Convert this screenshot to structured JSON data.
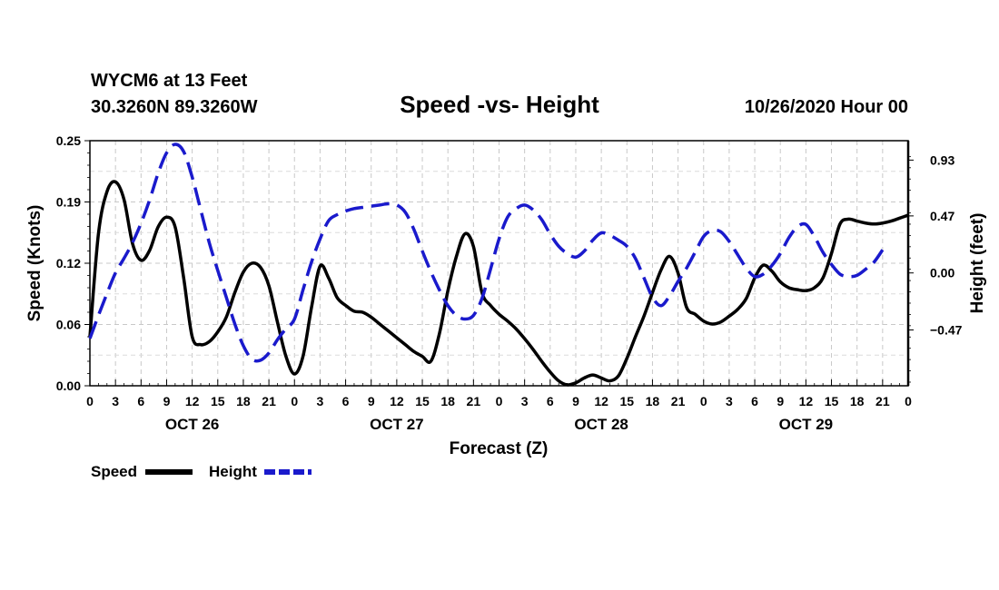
{
  "chart_data": {
    "type": "line",
    "station_line": "WYCM6 at 13 Feet",
    "location_line": "30.3260N 89.3260W",
    "title": "Speed -vs- Height",
    "run_label": "10/26/2020 Hour 00",
    "xlabel": "Forecast (Z)",
    "ylabel_left": "Speed (Knots)",
    "ylabel_right": "Height (feet)",
    "x_range_hours": [
      0,
      96
    ],
    "y_left_range": [
      0,
      0.25
    ],
    "y_right_range": [
      -0.93,
      1.09
    ],
    "y_left_ticks": [
      "0.00",
      "0.06",
      "0.12",
      "0.19",
      "0.25"
    ],
    "y_left_tick_values": [
      0.0,
      0.0625,
      0.125,
      0.1875,
      0.25
    ],
    "y_right_ticks": [
      "−0.47",
      "0.00",
      "0.47",
      "0.93"
    ],
    "y_right_tick_values": [
      -0.47,
      0.0,
      0.47,
      0.93
    ],
    "x_tick_hours": [
      0,
      3,
      6,
      9,
      12,
      15,
      18,
      21,
      24,
      27,
      30,
      33,
      36,
      39,
      42,
      45,
      48,
      51,
      54,
      57,
      60,
      63,
      66,
      69,
      72,
      75,
      78,
      81,
      84,
      87,
      90,
      93,
      96
    ],
    "x_tick_labels": [
      "0",
      "3",
      "6",
      "9",
      "12",
      "15",
      "18",
      "21",
      "0",
      "3",
      "6",
      "9",
      "12",
      "15",
      "18",
      "21",
      "0",
      "3",
      "6",
      "9",
      "12",
      "15",
      "18",
      "21",
      "0",
      "3",
      "6",
      "9",
      "12",
      "15",
      "18",
      "21",
      "0"
    ],
    "day_labels": [
      {
        "label": "OCT 26",
        "hour": 12
      },
      {
        "label": "OCT 27",
        "hour": 36
      },
      {
        "label": "OCT 28",
        "hour": 60
      },
      {
        "label": "OCT 29",
        "hour": 84
      }
    ],
    "grid": true,
    "legend_position": "bottom-left",
    "series": [
      {
        "name": "Speed",
        "axis": "left",
        "color": "#000000",
        "style": "solid",
        "points": [
          [
            0,
            0.05
          ],
          [
            1,
            0.155
          ],
          [
            2,
            0.198
          ],
          [
            3,
            0.208
          ],
          [
            4,
            0.19
          ],
          [
            5,
            0.145
          ],
          [
            6,
            0.128
          ],
          [
            7,
            0.138
          ],
          [
            8,
            0.162
          ],
          [
            9,
            0.172
          ],
          [
            10,
            0.162
          ],
          [
            11,
            0.11
          ],
          [
            12,
            0.05
          ],
          [
            13,
            0.042
          ],
          [
            14,
            0.045
          ],
          [
            15,
            0.055
          ],
          [
            16,
            0.07
          ],
          [
            17,
            0.095
          ],
          [
            18,
            0.116
          ],
          [
            19,
            0.125
          ],
          [
            20,
            0.121
          ],
          [
            21,
            0.102
          ],
          [
            22,
            0.065
          ],
          [
            23,
            0.03
          ],
          [
            24,
            0.012
          ],
          [
            25,
            0.03
          ],
          [
            26,
            0.08
          ],
          [
            27,
            0.122
          ],
          [
            28,
            0.11
          ],
          [
            29,
            0.09
          ],
          [
            30,
            0.082
          ],
          [
            31,
            0.076
          ],
          [
            32,
            0.075
          ],
          [
            33,
            0.07
          ],
          [
            34,
            0.063
          ],
          [
            35,
            0.056
          ],
          [
            36,
            0.049
          ],
          [
            37,
            0.042
          ],
          [
            38,
            0.035
          ],
          [
            39,
            0.03
          ],
          [
            40,
            0.025
          ],
          [
            41,
            0.053
          ],
          [
            42,
            0.097
          ],
          [
            43,
            0.132
          ],
          [
            44,
            0.155
          ],
          [
            45,
            0.142
          ],
          [
            46,
            0.095
          ],
          [
            47,
            0.082
          ],
          [
            48,
            0.073
          ],
          [
            49,
            0.066
          ],
          [
            50,
            0.058
          ],
          [
            51,
            0.048
          ],
          [
            52,
            0.037
          ],
          [
            53,
            0.025
          ],
          [
            54,
            0.014
          ],
          [
            55,
            0.005
          ],
          [
            56,
            0.001
          ],
          [
            57,
            0.003
          ],
          [
            58,
            0.008
          ],
          [
            59,
            0.011
          ],
          [
            60,
            0.008
          ],
          [
            61,
            0.005
          ],
          [
            62,
            0.01
          ],
          [
            63,
            0.028
          ],
          [
            64,
            0.05
          ],
          [
            65,
            0.071
          ],
          [
            66,
            0.095
          ],
          [
            67,
            0.118
          ],
          [
            68,
            0.132
          ],
          [
            69,
            0.115
          ],
          [
            70,
            0.08
          ],
          [
            71,
            0.073
          ],
          [
            72,
            0.066
          ],
          [
            73,
            0.063
          ],
          [
            74,
            0.065
          ],
          [
            75,
            0.071
          ],
          [
            76,
            0.078
          ],
          [
            77,
            0.089
          ],
          [
            78,
            0.11
          ],
          [
            79,
            0.123
          ],
          [
            80,
            0.117
          ],
          [
            81,
            0.106
          ],
          [
            82,
            0.1
          ],
          [
            83,
            0.098
          ],
          [
            84,
            0.097
          ],
          [
            85,
            0.1
          ],
          [
            86,
            0.11
          ],
          [
            87,
            0.135
          ],
          [
            88,
            0.165
          ],
          [
            89,
            0.17
          ],
          [
            90,
            0.168
          ],
          [
            91,
            0.166
          ],
          [
            92,
            0.165
          ],
          [
            93,
            0.166
          ],
          [
            94,
            0.168
          ],
          [
            95,
            0.171
          ],
          [
            96,
            0.174
          ]
        ]
      },
      {
        "name": "Height",
        "axis": "right",
        "color": "#1a1acc",
        "style": "dashed",
        "points": [
          [
            0,
            -0.54
          ],
          [
            1,
            -0.35
          ],
          [
            2,
            -0.17
          ],
          [
            3,
            0.0
          ],
          [
            4,
            0.12
          ],
          [
            5,
            0.25
          ],
          [
            6,
            0.41
          ],
          [
            7,
            0.6
          ],
          [
            8,
            0.82
          ],
          [
            9,
            0.99
          ],
          [
            10,
            1.06
          ],
          [
            11,
            1.0
          ],
          [
            12,
            0.79
          ],
          [
            13,
            0.52
          ],
          [
            14,
            0.25
          ],
          [
            15,
            0.02
          ],
          [
            16,
            -0.2
          ],
          [
            17,
            -0.42
          ],
          [
            18,
            -0.6
          ],
          [
            19,
            -0.71
          ],
          [
            20,
            -0.72
          ],
          [
            21,
            -0.66
          ],
          [
            22,
            -0.55
          ],
          [
            23,
            -0.46
          ],
          [
            24,
            -0.38
          ],
          [
            25,
            -0.14
          ],
          [
            26,
            0.09
          ],
          [
            27,
            0.28
          ],
          [
            28,
            0.43
          ],
          [
            29,
            0.48
          ],
          [
            30,
            0.51
          ],
          [
            31,
            0.53
          ],
          [
            32,
            0.54
          ],
          [
            33,
            0.55
          ],
          [
            34,
            0.56
          ],
          [
            35,
            0.57
          ],
          [
            36,
            0.56
          ],
          [
            37,
            0.5
          ],
          [
            38,
            0.36
          ],
          [
            39,
            0.18
          ],
          [
            40,
            0.01
          ],
          [
            41,
            -0.14
          ],
          [
            42,
            -0.27
          ],
          [
            43,
            -0.35
          ],
          [
            44,
            -0.38
          ],
          [
            45,
            -0.35
          ],
          [
            46,
            -0.21
          ],
          [
            47,
            0.03
          ],
          [
            48,
            0.28
          ],
          [
            49,
            0.46
          ],
          [
            50,
            0.53
          ],
          [
            51,
            0.56
          ],
          [
            52,
            0.52
          ],
          [
            53,
            0.44
          ],
          [
            54,
            0.32
          ],
          [
            55,
            0.22
          ],
          [
            56,
            0.16
          ],
          [
            57,
            0.13
          ],
          [
            58,
            0.18
          ],
          [
            59,
            0.27
          ],
          [
            60,
            0.33
          ],
          [
            61,
            0.31
          ],
          [
            62,
            0.27
          ],
          [
            63,
            0.22
          ],
          [
            64,
            0.12
          ],
          [
            65,
            -0.04
          ],
          [
            66,
            -0.2
          ],
          [
            67,
            -0.27
          ],
          [
            68,
            -0.19
          ],
          [
            69,
            -0.07
          ],
          [
            70,
            0.04
          ],
          [
            71,
            0.17
          ],
          [
            72,
            0.3
          ],
          [
            73,
            0.35
          ],
          [
            74,
            0.34
          ],
          [
            75,
            0.26
          ],
          [
            76,
            0.15
          ],
          [
            77,
            0.04
          ],
          [
            78,
            -0.03
          ],
          [
            79,
            -0.01
          ],
          [
            80,
            0.06
          ],
          [
            81,
            0.16
          ],
          [
            82,
            0.29
          ],
          [
            83,
            0.38
          ],
          [
            84,
            0.4
          ],
          [
            85,
            0.3
          ],
          [
            86,
            0.17
          ],
          [
            87,
            0.07
          ],
          [
            88,
            -0.01
          ],
          [
            89,
            -0.03
          ],
          [
            90,
            -0.02
          ],
          [
            91,
            0.03
          ],
          [
            92,
            0.09
          ],
          [
            93,
            0.19
          ]
        ]
      }
    ]
  },
  "legend": {
    "speed_label": "Speed",
    "height_label": "Height"
  }
}
